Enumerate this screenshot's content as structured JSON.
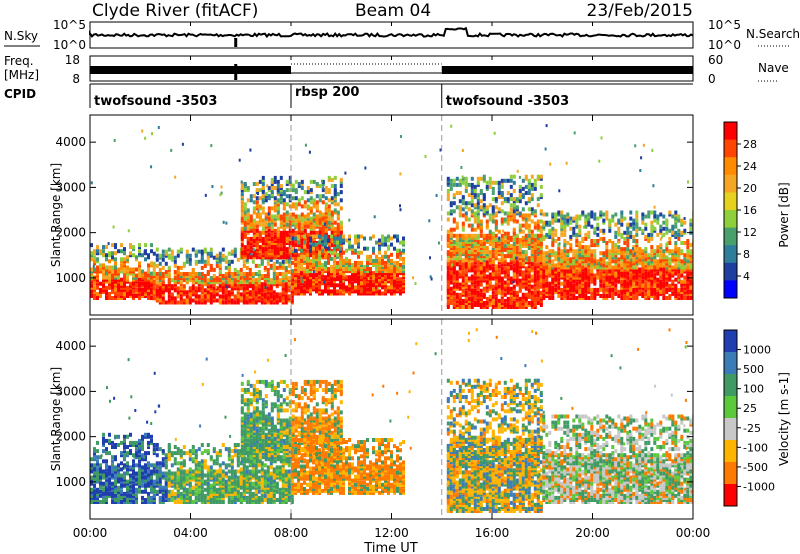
{
  "header": {
    "radar": "Clyde River (fitACF)",
    "beam": "Beam 04",
    "date": "23/Feb/2015"
  },
  "status_panels": {
    "nsky_label": "N.Sky",
    "nsky_ticks": [
      "10^5",
      "10^0"
    ],
    "nsearch_label": "N.Search",
    "freq_label_line1": "Freq.",
    "freq_label_line2": "[MHz]",
    "freq_ticks": [
      "18",
      "8"
    ],
    "nave_label": "Nave",
    "nave_ticks": [
      "60",
      "0"
    ],
    "cpid_label": "CPID",
    "cpid_segments": [
      {
        "name": "twofsound -3503",
        "start_hour": 0,
        "end_hour": 8
      },
      {
        "name": "rbsp 200",
        "start_hour": 8,
        "end_hour": 14
      },
      {
        "name": "twofsound -3503",
        "start_hour": 14,
        "end_hour": 24
      }
    ]
  },
  "chart_data": [
    {
      "type": "heatmap",
      "panel": "power",
      "ylabel": "Slant Range [km]",
      "ylim": [
        180,
        4600
      ],
      "yticks": [
        1000,
        2000,
        3000,
        4000
      ],
      "colorbar_label": "Power [dB]",
      "colorbar_ticks": [
        "28",
        "24",
        "20",
        "16",
        "12",
        "8",
        "4"
      ],
      "colorbar_colors": [
        "#ff0000",
        "#ff4500",
        "#ff8c00",
        "#f5a623",
        "#e6d21e",
        "#8fcf3c",
        "#4aa06c",
        "#2e7d9a",
        "#1e3fa0",
        "#0000ff"
      ],
      "echo_regions": [
        {
          "start_hour": 0.0,
          "end_hour": 2.5,
          "range_min_km": 600,
          "range_max_km": 1800
        },
        {
          "start_hour": 2.5,
          "end_hour": 8.0,
          "range_min_km": 500,
          "range_max_km": 1700
        },
        {
          "start_hour": 6.0,
          "end_hour": 10.0,
          "range_min_km": 1500,
          "range_max_km": 3300
        },
        {
          "start_hour": 8.0,
          "end_hour": 12.5,
          "range_min_km": 700,
          "range_max_km": 2000
        },
        {
          "start_hour": 14.2,
          "end_hour": 18.0,
          "range_min_km": 400,
          "range_max_km": 3300
        },
        {
          "start_hour": 18.0,
          "end_hour": 24.0,
          "range_min_km": 600,
          "range_max_km": 2500
        }
      ]
    },
    {
      "type": "heatmap",
      "panel": "velocity",
      "ylabel": "Slant Range [km]",
      "xlabel": "Time UT",
      "xticks": [
        "00:00",
        "04:00",
        "08:00",
        "12:00",
        "16:00",
        "20:00",
        "00:00"
      ],
      "ylim": [
        180,
        4600
      ],
      "yticks": [
        1000,
        2000,
        3000,
        4000
      ],
      "colorbar_label": "Velocity [m s-1]",
      "colorbar_ticks": [
        "1000",
        "500",
        "100",
        "25",
        "-25",
        "-100",
        "-500",
        "-1000"
      ],
      "colorbar_colors": [
        "#1f3fb0",
        "#3a7bb8",
        "#3f9a63",
        "#5cc83c",
        "#c8c8c8",
        "#ffb400",
        "#ff7a00",
        "#ff0000"
      ],
      "echo_regions": [
        {
          "start_hour": 0.0,
          "end_hour": 2.5,
          "range_min_km": 600,
          "range_max_km": 2100
        },
        {
          "start_hour": 2.5,
          "end_hour": 8.0,
          "range_min_km": 600,
          "range_max_km": 1900
        },
        {
          "start_hour": 6.0,
          "end_hour": 10.0,
          "range_min_km": 1500,
          "range_max_km": 3300
        },
        {
          "start_hour": 8.0,
          "end_hour": 12.5,
          "range_min_km": 800,
          "range_max_km": 2000
        },
        {
          "start_hour": 14.2,
          "end_hour": 18.0,
          "range_min_km": 400,
          "range_max_km": 3300
        },
        {
          "start_hour": 18.0,
          "end_hour": 24.0,
          "range_min_km": 600,
          "range_max_km": 2500
        }
      ]
    }
  ]
}
